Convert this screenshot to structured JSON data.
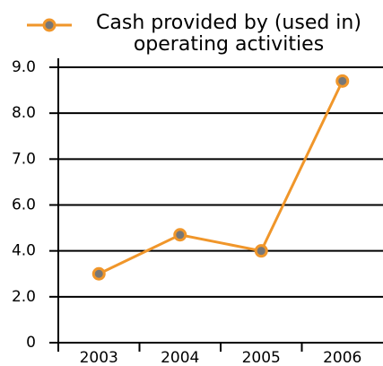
{
  "chart_data": {
    "type": "line",
    "categories": [
      "2003",
      "2004",
      "2005",
      "2006"
    ],
    "series": [
      {
        "name": "Cash provided by (used in) operating activities",
        "color": "#f0962a",
        "values": [
          3.0,
          4.7,
          4.0,
          8.7
        ]
      }
    ],
    "ylim": [
      0,
      9
    ],
    "yticks": [
      0,
      {
        "value": 2,
        "label": "2.0"
      },
      {
        "value": 4,
        "label": "4.0"
      },
      {
        "value": 6,
        "label": "6.0"
      },
      {
        "value": 7,
        "label": "7.0"
      },
      {
        "value": 8,
        "label": "8.0"
      },
      {
        "value": 9,
        "label": "9.0"
      }
    ],
    "grid": true
  }
}
